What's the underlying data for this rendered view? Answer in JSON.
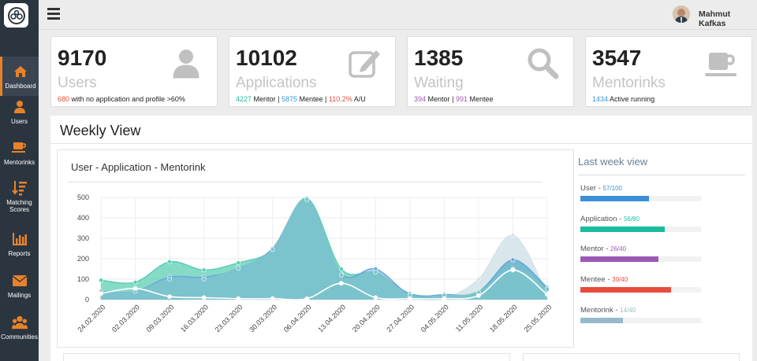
{
  "header": {
    "user_name": "Mahmut Kafkas"
  },
  "sidebar": {
    "items": [
      {
        "label": "Dashboard",
        "icon": "home-icon"
      },
      {
        "label": "Users",
        "icon": "user-icon"
      },
      {
        "label": "Mentorinks",
        "icon": "coffee-icon"
      },
      {
        "label": "Matching Scores",
        "icon": "sort-amount-icon"
      },
      {
        "label": "Reports",
        "icon": "bar-chart-icon"
      },
      {
        "label": "Mailings",
        "icon": "envelope-icon"
      },
      {
        "label": "Communities",
        "icon": "users-icon"
      }
    ]
  },
  "stats": {
    "users": {
      "value": "9170",
      "label": "Users",
      "sub_num": "680",
      "sub_text": "with no application and profile >60%"
    },
    "applications": {
      "value": "10102",
      "label": "Applications",
      "mentor_num": "4227",
      "mentor_text": "Mentor",
      "mentee_num": "5875",
      "mentee_text": "Mentee",
      "ratio_num": "110.2%",
      "ratio_text": "A/U",
      "sep": "|"
    },
    "waiting": {
      "value": "1385",
      "label": "Waiting",
      "mentor_num": "394",
      "mentor_text": "Mentor",
      "mentee_num": "991",
      "mentee_text": "Mentee",
      "sep": "|"
    },
    "mentorinks": {
      "value": "3547",
      "label": "Mentorinks",
      "sub_num": "1434",
      "sub_text": "Active running"
    }
  },
  "weekly": {
    "title": "Weekly View",
    "chart_title": "User - Application - Mentorink",
    "last_week_title": "Last week view",
    "last_week": [
      {
        "label": "User",
        "sep": " - ",
        "value": "57/100",
        "fraction": 0.57,
        "color": "#3a8fd8",
        "value_color": "#3a8fd8"
      },
      {
        "label": "Application",
        "sep": " - ",
        "value": "56/80",
        "fraction": 0.7,
        "color": "#1abc9c",
        "value_color": "#1abc9c"
      },
      {
        "label": "Mentor",
        "sep": " - ",
        "value": "26/40",
        "fraction": 0.65,
        "color": "#9b59b6",
        "value_color": "#9b59b6"
      },
      {
        "label": "Mentee",
        "sep": " - ",
        "value": "30/40",
        "fraction": 0.75,
        "color": "#e74c3c",
        "value_color": "#e74c3c"
      },
      {
        "label": "Mentorink",
        "sep": " - ",
        "value": "14/40",
        "fraction": 0.35,
        "color": "#98bac8",
        "value_color": "#98bac8"
      }
    ]
  },
  "chart_data": {
    "type": "area",
    "title": "User - Application - Mentorink",
    "x": [
      "24.02.2020",
      "02.03.2020",
      "09.03.2020",
      "16.03.2020",
      "23.03.2020",
      "30.03.2020",
      "06.04.2020",
      "13.04.2020",
      "20.04.2020",
      "27.04.2020",
      "04.05.2020",
      "11.05.2020",
      "18.05.2020",
      "25.05.2020"
    ],
    "ylim": [
      0,
      500
    ],
    "yticks": [
      "0",
      "100",
      "200",
      "300",
      "400",
      "500"
    ],
    "grid": true,
    "series": [
      {
        "values": [
          10,
          12,
          5,
          5,
          5,
          5,
          5,
          80,
          10,
          5,
          5,
          100,
          315,
          25
        ],
        "color": "#d5e4ea"
      },
      {
        "values": [
          95,
          85,
          185,
          145,
          180,
          245,
          495,
          150,
          130,
          30,
          20,
          40,
          190,
          60
        ],
        "color": "#5ecfb4"
      },
      {
        "values": [
          40,
          40,
          110,
          110,
          150,
          250,
          485,
          125,
          150,
          25,
          25,
          35,
          195,
          55
        ],
        "color": "#6fa8dc"
      },
      {
        "values": [
          40,
          40,
          100,
          100,
          155,
          245,
          490,
          120,
          135,
          20,
          20,
          35,
          150,
          50
        ],
        "color": "#7cc4cc"
      },
      {
        "values": [
          30,
          55,
          15,
          10,
          5,
          5,
          5,
          80,
          10,
          5,
          5,
          20,
          145,
          25
        ],
        "color": "#ffffff"
      }
    ]
  }
}
